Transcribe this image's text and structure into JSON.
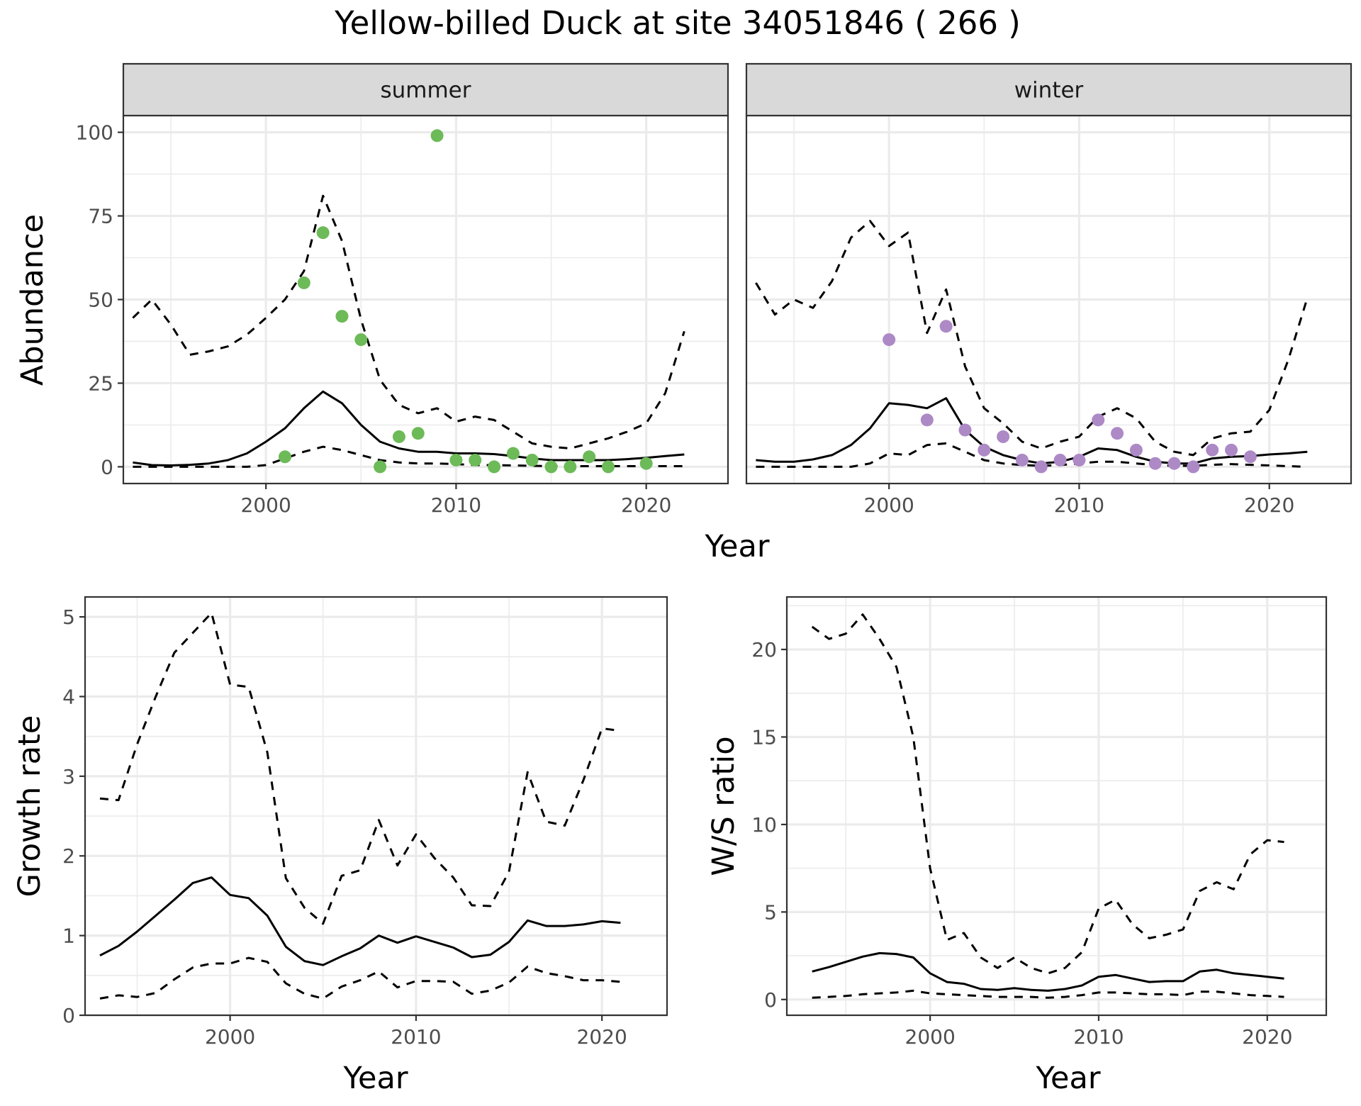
{
  "title": "Yellow-billed Duck at site 34051846 ( 266 )",
  "colors": {
    "summer_points": "#6cba58",
    "winter_points": "#ad89c6",
    "lines": "#000000"
  },
  "chart_data": [
    {
      "id": "summer",
      "type": "line",
      "facet_label": "summer",
      "xlabel": "Year",
      "ylabel": "Abundance",
      "xlim": [
        1992.5,
        2024.3
      ],
      "ylim": [
        -5,
        105
      ],
      "x_ticks": [
        2000,
        2010,
        2020
      ],
      "y_ticks": [
        0,
        25,
        50,
        75,
        100
      ],
      "grid": true,
      "series": [
        {
          "style": "solid",
          "x": [
            1993,
            1994,
            1995,
            1996,
            1997,
            1998,
            1999,
            2000,
            2001,
            2002,
            2003,
            2004,
            2005,
            2006,
            2007,
            2008,
            2009,
            2010,
            2011,
            2012,
            2013,
            2014,
            2015,
            2016,
            2017,
            2018,
            2019,
            2020,
            2021,
            2022
          ],
          "y": [
            1.3,
            0.5,
            0.4,
            0.6,
            1,
            2,
            4,
            7.5,
            11.5,
            17.5,
            22.5,
            19,
            12.5,
            7.5,
            5.5,
            4.5,
            4.5,
            4,
            4,
            3.8,
            3.2,
            2.5,
            2,
            2,
            2,
            2,
            2.3,
            2.7,
            3.2,
            3.7
          ]
        },
        {
          "style": "dashed",
          "x": [
            1993,
            1994,
            1995,
            1996,
            1997,
            1998,
            1999,
            2000,
            2001,
            2002,
            2003,
            2004,
            2005,
            2006,
            2007,
            2008,
            2009,
            2010,
            2011,
            2012,
            2013,
            2014,
            2015,
            2016,
            2017,
            2018,
            2019,
            2020,
            2021,
            2022
          ],
          "y": [
            44.5,
            50,
            42.5,
            33.5,
            34.5,
            36,
            39.5,
            44.5,
            50,
            58.5,
            81,
            67.5,
            44,
            26,
            18.5,
            16,
            17.5,
            13.5,
            15,
            14,
            10.5,
            7,
            6,
            5.5,
            7,
            8.5,
            10.5,
            13,
            22,
            40.5
          ]
        },
        {
          "style": "dashed",
          "x": [
            1993,
            1994,
            1995,
            1996,
            1997,
            1998,
            1999,
            2000,
            2001,
            2002,
            2003,
            2004,
            2005,
            2006,
            2007,
            2008,
            2009,
            2010,
            2011,
            2012,
            2013,
            2014,
            2015,
            2016,
            2017,
            2018,
            2019,
            2020,
            2021,
            2022
          ],
          "y": [
            0,
            0,
            0,
            0,
            0,
            0,
            0,
            0.5,
            2.5,
            4.5,
            6,
            5,
            3.5,
            2,
            1.3,
            1,
            1,
            0.8,
            0.5,
            0.5,
            0.4,
            0.3,
            0.2,
            0.2,
            0.2,
            0.2,
            0.2,
            0.2,
            0.2,
            0.2
          ]
        },
        {
          "style": "points",
          "x": [
            2001,
            2002,
            2003,
            2004,
            2005,
            2006,
            2007,
            2008,
            2009,
            2010,
            2011,
            2012,
            2013,
            2014,
            2015,
            2016,
            2017,
            2018,
            2020
          ],
          "y": [
            3,
            55,
            70,
            45,
            38,
            0,
            9,
            10,
            99,
            2,
            2,
            0,
            4,
            2,
            0,
            0,
            3,
            0,
            1
          ]
        }
      ]
    },
    {
      "id": "winter",
      "type": "line",
      "facet_label": "winter",
      "xlabel": "Year",
      "ylabel": "",
      "xlim": [
        1992.5,
        2024.3
      ],
      "ylim": [
        -5,
        105
      ],
      "x_ticks": [
        2000,
        2010,
        2020
      ],
      "y_ticks": [],
      "grid": true,
      "series": [
        {
          "style": "solid",
          "x": [
            1993,
            1994,
            1995,
            1996,
            1997,
            1998,
            1999,
            2000,
            2001,
            2002,
            2003,
            2004,
            2005,
            2006,
            2007,
            2008,
            2009,
            2010,
            2011,
            2012,
            2013,
            2014,
            2015,
            2016,
            2017,
            2018,
            2019,
            2020,
            2021,
            2022
          ],
          "y": [
            2,
            1.5,
            1.5,
            2.2,
            3.5,
            6.5,
            11.5,
            19,
            18.5,
            17.5,
            20.5,
            11,
            6,
            3.5,
            2,
            1,
            1.5,
            3,
            5.5,
            5,
            3,
            1.5,
            1,
            1,
            2.5,
            3,
            3.2,
            3.7,
            4,
            4.5
          ]
        },
        {
          "style": "dashed",
          "x": [
            1993,
            1994,
            1995,
            1996,
            1997,
            1998,
            1999,
            2000,
            2001,
            2002,
            2003,
            2004,
            2005,
            2006,
            2007,
            2008,
            2009,
            2010,
            2011,
            2012,
            2013,
            2014,
            2015,
            2016,
            2017,
            2018,
            2019,
            2020,
            2021,
            2022
          ],
          "y": [
            55,
            45.5,
            50,
            47.5,
            55.5,
            68.5,
            73.5,
            66,
            70,
            40,
            53,
            30,
            17.5,
            13,
            7.5,
            5.5,
            7.5,
            9,
            15,
            17.5,
            14.5,
            7.5,
            4.5,
            3.5,
            8.5,
            10,
            10.5,
            17,
            32,
            50.5
          ]
        },
        {
          "style": "dashed",
          "x": [
            1993,
            1994,
            1995,
            1996,
            1997,
            1998,
            1999,
            2000,
            2001,
            2002,
            2003,
            2004,
            2005,
            2006,
            2007,
            2008,
            2009,
            2010,
            2011,
            2012,
            2013,
            2014,
            2015,
            2016,
            2017,
            2018,
            2019,
            2020,
            2021,
            2022
          ],
          "y": [
            0,
            0,
            0,
            0,
            0,
            0,
            1,
            4,
            3.5,
            6.5,
            7,
            4.5,
            2,
            1,
            0.5,
            0.3,
            0.5,
            1,
            1.5,
            1.5,
            1,
            0.5,
            0.3,
            0.3,
            0.6,
            0.8,
            0.6,
            0.4,
            0.2,
            0
          ]
        },
        {
          "style": "points",
          "x": [
            2000,
            2002,
            2003,
            2004,
            2005,
            2006,
            2007,
            2008,
            2009,
            2010,
            2011,
            2012,
            2013,
            2014,
            2015,
            2016,
            2017,
            2018,
            2019
          ],
          "y": [
            38,
            14,
            42,
            11,
            5,
            9,
            2,
            0,
            2,
            2,
            14,
            10,
            5,
            1,
            1,
            0,
            5,
            5,
            3
          ]
        }
      ]
    },
    {
      "id": "growth",
      "type": "line",
      "facet_label": "",
      "xlabel": "Year",
      "ylabel": "Growth rate",
      "xlim": [
        1992.2,
        2023.5
      ],
      "ylim": [
        0,
        5.25
      ],
      "x_ticks": [
        2000,
        2010,
        2020
      ],
      "y_ticks": [
        0,
        1,
        2,
        3,
        4,
        5
      ],
      "grid": true,
      "series": [
        {
          "style": "solid",
          "x": [
            1993,
            1994,
            1995,
            1996,
            1997,
            1998,
            1999,
            2000,
            2001,
            2002,
            2003,
            2004,
            2005,
            2006,
            2007,
            2008,
            2009,
            2010,
            2011,
            2012,
            2013,
            2014,
            2015,
            2016,
            2017,
            2018,
            2019,
            2020,
            2021
          ],
          "y": [
            0.75,
            0.87,
            1.05,
            1.25,
            1.45,
            1.66,
            1.73,
            1.51,
            1.47,
            1.25,
            0.86,
            0.68,
            0.63,
            0.74,
            0.84,
            1,
            0.91,
            0.99,
            0.92,
            0.85,
            0.73,
            0.76,
            0.92,
            1.19,
            1.12,
            1.12,
            1.14,
            1.18,
            1.16
          ]
        },
        {
          "style": "dashed",
          "x": [
            1993,
            1994,
            1995,
            1996,
            1997,
            1998,
            1999,
            2000,
            2001,
            2002,
            2003,
            2004,
            2005,
            2006,
            2007,
            2008,
            2009,
            2010,
            2011,
            2012,
            2013,
            2014,
            2015,
            2016,
            2017,
            2018,
            2019,
            2020,
            2021
          ],
          "y": [
            2.72,
            2.7,
            3.4,
            4,
            4.55,
            4.8,
            5.05,
            4.15,
            4.12,
            3.3,
            1.72,
            1.35,
            1.15,
            1.75,
            1.82,
            2.45,
            1.88,
            2.27,
            1.97,
            1.73,
            1.38,
            1.37,
            1.8,
            3.05,
            2.43,
            2.38,
            2.95,
            3.6,
            3.57
          ]
        },
        {
          "style": "dashed",
          "x": [
            1993,
            1994,
            1995,
            1996,
            1997,
            1998,
            1999,
            2000,
            2001,
            2002,
            2003,
            2004,
            2005,
            2006,
            2007,
            2008,
            2009,
            2010,
            2011,
            2012,
            2013,
            2014,
            2015,
            2016,
            2017,
            2018,
            2019,
            2020,
            2021
          ],
          "y": [
            0.21,
            0.25,
            0.23,
            0.28,
            0.45,
            0.6,
            0.65,
            0.65,
            0.72,
            0.67,
            0.4,
            0.27,
            0.21,
            0.36,
            0.44,
            0.55,
            0.35,
            0.43,
            0.43,
            0.42,
            0.27,
            0.31,
            0.41,
            0.61,
            0.53,
            0.49,
            0.44,
            0.44,
            0.42
          ]
        }
      ]
    },
    {
      "id": "ratio",
      "type": "line",
      "facet_label": "",
      "xlabel": "Year",
      "ylabel": "W/S ratio",
      "xlim": [
        1991.5,
        2023.5
      ],
      "ylim": [
        -0.9,
        23
      ],
      "x_ticks": [
        2000,
        2010,
        2020
      ],
      "y_ticks": [
        0,
        5,
        10,
        15,
        20
      ],
      "grid": true,
      "series": [
        {
          "style": "solid",
          "x": [
            1993,
            1994,
            1995,
            1996,
            1997,
            1998,
            1999,
            2000,
            2001,
            2002,
            2003,
            2004,
            2005,
            2006,
            2007,
            2008,
            2009,
            2010,
            2011,
            2012,
            2013,
            2014,
            2015,
            2016,
            2017,
            2018,
            2019,
            2020,
            2021
          ],
          "y": [
            1.6,
            1.85,
            2.15,
            2.45,
            2.65,
            2.6,
            2.4,
            1.5,
            1,
            0.9,
            0.6,
            0.55,
            0.65,
            0.55,
            0.5,
            0.6,
            0.8,
            1.3,
            1.4,
            1.2,
            1,
            1.05,
            1.05,
            1.6,
            1.7,
            1.5,
            1.4,
            1.3,
            1.2
          ]
        },
        {
          "style": "dashed",
          "x": [
            1993,
            1994,
            1995,
            1996,
            1997,
            1998,
            1999,
            2000,
            2001,
            2002,
            2003,
            2004,
            2005,
            2006,
            2007,
            2008,
            2009,
            2010,
            2011,
            2012,
            2013,
            2014,
            2015,
            2016,
            2017,
            2018,
            2019,
            2020,
            2021
          ],
          "y": [
            21.3,
            20.6,
            20.9,
            22,
            20.6,
            19,
            15,
            7.5,
            3.4,
            3.8,
            2.4,
            1.8,
            2.4,
            1.8,
            1.5,
            1.8,
            2.7,
            5.2,
            5.7,
            4.3,
            3.5,
            3.7,
            4,
            6.2,
            6.7,
            6.3,
            8.3,
            9.1,
            9
          ]
        },
        {
          "style": "dashed",
          "x": [
            1993,
            1994,
            1995,
            1996,
            1997,
            1998,
            1999,
            2000,
            2001,
            2002,
            2003,
            2004,
            2005,
            2006,
            2007,
            2008,
            2009,
            2010,
            2011,
            2012,
            2013,
            2014,
            2015,
            2016,
            2017,
            2018,
            2019,
            2020,
            2021
          ],
          "y": [
            0.1,
            0.15,
            0.2,
            0.3,
            0.35,
            0.4,
            0.5,
            0.35,
            0.3,
            0.25,
            0.2,
            0.15,
            0.15,
            0.15,
            0.1,
            0.15,
            0.25,
            0.4,
            0.4,
            0.35,
            0.3,
            0.3,
            0.25,
            0.45,
            0.45,
            0.35,
            0.25,
            0.2,
            0.15
          ]
        }
      ]
    }
  ]
}
